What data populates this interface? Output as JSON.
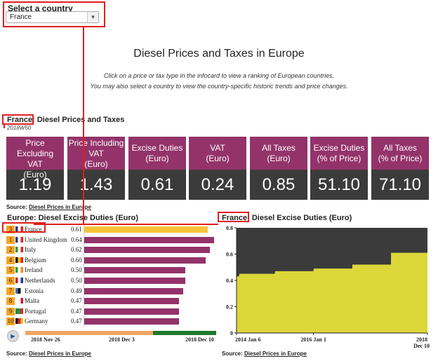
{
  "selector": {
    "label": "Select a country",
    "value": "France",
    "arrow_icon": "chevron-down-icon"
  },
  "title": "Diesel Prices and Taxes in Europe",
  "intro": [
    "Click on a price or tax type in the infocard to view a ranking of European countries.",
    "You may also select a country to view the country-specific historic trends and price changes."
  ],
  "infocard": {
    "country": "France:",
    "title": "Diesel Prices and Taxes",
    "subtitle": "2018W50",
    "cards": [
      {
        "label": [
          "Price Excluding",
          "VAT",
          "(Euro)"
        ],
        "value": "1.19"
      },
      {
        "label": [
          "Price Including",
          "VAT",
          "(Euro)"
        ],
        "value": "1.43"
      },
      {
        "label": [
          "Excise Duties",
          "(Euro)"
        ],
        "value": "0.61"
      },
      {
        "label": [
          "VAT",
          "(Euro)"
        ],
        "value": "0.24"
      },
      {
        "label": [
          "All Taxes",
          "(Euro)"
        ],
        "value": "0.85"
      },
      {
        "label": [
          "Excise Duties",
          "(% of Price)"
        ],
        "value": "51.10"
      },
      {
        "label": [
          "All Taxes",
          "(% of Price)"
        ],
        "value": "71.10"
      }
    ],
    "source_prefix": "Source:",
    "source_link": "Diesel Prices in Europe"
  },
  "ranking": {
    "title": "Europe: Diesel Excise Duties (Euro)",
    "rows": [
      {
        "rank": "3",
        "country": "France",
        "value": "0.61",
        "flag": [
          "#1f3a93",
          "#ffffff",
          "#e0242b"
        ],
        "highlight": true
      },
      {
        "rank": "1",
        "country": "United Kingdom",
        "value": "0.64",
        "flag": [
          "#1f3a93",
          "#ffffff",
          "#e0242b"
        ]
      },
      {
        "rank": "2",
        "country": "Italy",
        "value": "0.62",
        "flag": [
          "#2c9a3c",
          "#ffffff",
          "#e0242b"
        ]
      },
      {
        "rank": "4",
        "country": "Belgium",
        "value": "0.60",
        "flag": [
          "#111111",
          "#f2c500",
          "#e0242b"
        ]
      },
      {
        "rank": "5",
        "country": "Ireland",
        "value": "0.50",
        "flag": [
          "#2c9a3c",
          "#ffffff",
          "#f28c1c"
        ]
      },
      {
        "rank": "6",
        "country": "Netherlands",
        "value": "0.50",
        "flag": [
          "#c8202f",
          "#ffffff",
          "#1f3a93"
        ]
      },
      {
        "rank": "7",
        "country": "Estonia",
        "value": "0.49",
        "flag": [
          "#3a75c4",
          "#111111",
          "#ffffff"
        ]
      },
      {
        "rank": "8",
        "country": "Malta",
        "value": "0.47",
        "flag": [
          "#ffffff",
          "#ffffff",
          "#c8202f"
        ]
      },
      {
        "rank": "9",
        "country": "Portugal",
        "value": "0.47",
        "flag": [
          "#2c8a3c",
          "#2c8a3c",
          "#e0242b"
        ]
      },
      {
        "rank": "10",
        "country": "Germany",
        "value": "0.47",
        "flag": [
          "#111111",
          "#e0242b",
          "#f2c500"
        ]
      }
    ],
    "timeline": {
      "labels": [
        "2018 Nov 26",
        "2018 Dec 3",
        "2018 Dec 10"
      ],
      "progress": 0.67,
      "play_icon": "play-icon"
    },
    "source_prefix": "Source:",
    "source_link": "Diesel Prices in Europe"
  },
  "trend": {
    "country": "France:",
    "title": "Diesel Excise Duties (Euro)",
    "source_prefix": "Source:",
    "source_link": "Diesel Prices in Europe"
  },
  "chart_data": {
    "type": "area",
    "title": "France: Diesel Excise Duties (Euro)",
    "ylim": [
      0,
      0.8
    ],
    "yticks": [
      "0",
      "0.2",
      "0.4",
      "0.6",
      "0.8"
    ],
    "xlim": [
      "2014-01-06",
      "2018-12-10"
    ],
    "xticks": [
      "2014 Jan 6",
      "2016 Jan 1",
      "2018 Dec 10"
    ],
    "x": [
      "2014-01-06",
      "2014-01-27",
      "2014-02-03",
      "2014-12-31",
      "2015-01-05",
      "2015-12-31",
      "2016-01-04",
      "2016-12-31",
      "2017-01-02",
      "2017-12-31",
      "2018-01-01",
      "2018-12-10"
    ],
    "series": [
      {
        "values": [
          0.43,
          0.43,
          0.45,
          0.45,
          0.47,
          0.47,
          0.49,
          0.49,
          0.52,
          0.52,
          0.61,
          0.61
        ]
      }
    ],
    "colors": {
      "fill": "#dcd739",
      "background": "#3b3b3b"
    },
    "grid": false
  },
  "colors": {
    "accent": "#93336a",
    "value_bg": "#3b3b3b",
    "highlight": "#f8c33a",
    "rank": "#f5a623",
    "annotation": "#e01f1f"
  }
}
